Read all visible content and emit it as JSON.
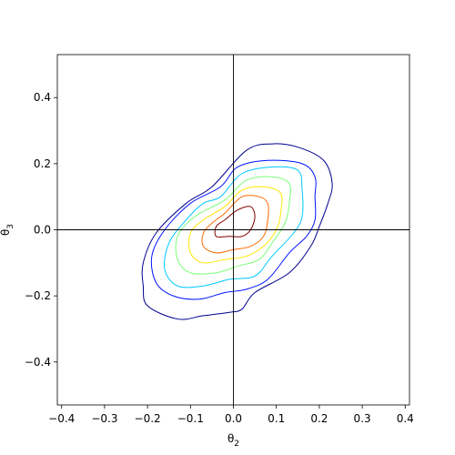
{
  "chart_data": {
    "type": "contour",
    "title": "",
    "xlabel": "θ",
    "xlabel_sub": "2",
    "ylabel": "θ",
    "ylabel_sub": "3",
    "xlim": [
      -0.41,
      0.41
    ],
    "ylim": [
      -0.53,
      0.53
    ],
    "x_ticks": [
      -0.4,
      -0.3,
      -0.2,
      -0.1,
      0.0,
      0.1,
      0.2,
      0.3,
      0.4
    ],
    "x_tick_labels": [
      "−0.4",
      "−0.3",
      "−0.2",
      "−0.1",
      "0.0",
      "0.1",
      "0.2",
      "0.3",
      "0.4"
    ],
    "y_ticks": [
      -0.4,
      -0.2,
      0.0,
      0.2,
      0.4
    ],
    "y_tick_labels": [
      "−0.4",
      "−0.2",
      "0.0",
      "0.2",
      "0.4"
    ],
    "reference_lines": {
      "x": 0.0,
      "y": 0.0,
      "color": "#000000"
    },
    "grid": false,
    "legend": "none",
    "contours": [
      {
        "level": 1,
        "color": "#00008f",
        "points": [
          [
            -0.05,
            0.13
          ],
          [
            0.03,
            0.24
          ],
          [
            0.09,
            0.26
          ],
          [
            0.15,
            0.25
          ],
          [
            0.21,
            0.21
          ],
          [
            0.23,
            0.14
          ],
          [
            0.22,
            0.08
          ],
          [
            0.2,
            0.01
          ],
          [
            0.18,
            -0.05
          ],
          [
            0.13,
            -0.13
          ],
          [
            0.05,
            -0.19
          ],
          [
            0.02,
            -0.24
          ],
          [
            -0.01,
            -0.25
          ],
          [
            -0.07,
            -0.26
          ],
          [
            -0.13,
            -0.27
          ],
          [
            -0.2,
            -0.23
          ],
          [
            -0.21,
            -0.17
          ],
          [
            -0.21,
            -0.1
          ],
          [
            -0.18,
            -0.01
          ],
          [
            -0.11,
            0.08
          ]
        ]
      },
      {
        "level": 2,
        "color": "#0014ff",
        "points": [
          [
            -0.03,
            0.13
          ],
          [
            0.01,
            0.19
          ],
          [
            0.08,
            0.21
          ],
          [
            0.16,
            0.2
          ],
          [
            0.19,
            0.16
          ],
          [
            0.19,
            0.1
          ],
          [
            0.19,
            0.03
          ],
          [
            0.17,
            -0.02
          ],
          [
            0.13,
            -0.07
          ],
          [
            0.08,
            -0.15
          ],
          [
            0.03,
            -0.18
          ],
          [
            -0.02,
            -0.19
          ],
          [
            -0.08,
            -0.21
          ],
          [
            -0.14,
            -0.2
          ],
          [
            -0.18,
            -0.16
          ],
          [
            -0.19,
            -0.08
          ],
          [
            -0.16,
            0.0
          ],
          [
            -0.1,
            0.08
          ]
        ]
      },
      {
        "level": 3,
        "color": "#00c8ff",
        "points": [
          [
            -0.03,
            0.1
          ],
          [
            0.02,
            0.17
          ],
          [
            0.09,
            0.19
          ],
          [
            0.15,
            0.18
          ],
          [
            0.16,
            0.12
          ],
          [
            0.16,
            0.04
          ],
          [
            0.14,
            -0.01
          ],
          [
            0.09,
            -0.08
          ],
          [
            0.05,
            -0.14
          ],
          [
            -0.01,
            -0.15
          ],
          [
            -0.07,
            -0.17
          ],
          [
            -0.13,
            -0.17
          ],
          [
            -0.16,
            -0.12
          ],
          [
            -0.15,
            -0.04
          ],
          [
            -0.11,
            0.03
          ],
          [
            -0.07,
            0.08
          ]
        ]
      },
      {
        "level": 4,
        "color": "#7dff7a",
        "points": [
          [
            -0.02,
            0.09
          ],
          [
            0.03,
            0.15
          ],
          [
            0.09,
            0.16
          ],
          [
            0.13,
            0.14
          ],
          [
            0.13,
            0.08
          ],
          [
            0.12,
            0.02
          ],
          [
            0.09,
            -0.04
          ],
          [
            0.06,
            -0.09
          ],
          [
            0.01,
            -0.11
          ],
          [
            -0.04,
            -0.13
          ],
          [
            -0.1,
            -0.13
          ],
          [
            -0.13,
            -0.09
          ],
          [
            -0.13,
            -0.02
          ],
          [
            -0.09,
            0.04
          ]
        ]
      },
      {
        "level": 5,
        "color": "#ffe600",
        "points": [
          [
            -0.02,
            0.07
          ],
          [
            0.02,
            0.12
          ],
          [
            0.07,
            0.13
          ],
          [
            0.11,
            0.11
          ],
          [
            0.11,
            0.05
          ],
          [
            0.1,
            0.0
          ],
          [
            0.07,
            -0.05
          ],
          [
            0.03,
            -0.08
          ],
          [
            -0.02,
            -0.09
          ],
          [
            -0.07,
            -0.1
          ],
          [
            -0.1,
            -0.07
          ],
          [
            -0.1,
            -0.01
          ],
          [
            -0.07,
            0.03
          ]
        ]
      },
      {
        "level": 6,
        "color": "#ff6800",
        "points": [
          [
            -0.02,
            0.05
          ],
          [
            0.02,
            0.1
          ],
          [
            0.06,
            0.1
          ],
          [
            0.08,
            0.08
          ],
          [
            0.08,
            0.03
          ],
          [
            0.07,
            -0.02
          ],
          [
            0.04,
            -0.05
          ],
          [
            0.0,
            -0.06
          ],
          [
            -0.04,
            -0.07
          ],
          [
            -0.07,
            -0.05
          ],
          [
            -0.07,
            -0.01
          ],
          [
            -0.05,
            0.02
          ]
        ]
      },
      {
        "level": 7,
        "color": "#7f0000",
        "points": [
          [
            -0.02,
            0.03
          ],
          [
            0.01,
            0.06
          ],
          [
            0.04,
            0.07
          ],
          [
            0.05,
            0.04
          ],
          [
            0.04,
            0.0
          ],
          [
            0.02,
            -0.02
          ],
          [
            -0.01,
            -0.02
          ],
          [
            -0.04,
            -0.02
          ],
          [
            -0.04,
            0.01
          ]
        ]
      }
    ]
  }
}
